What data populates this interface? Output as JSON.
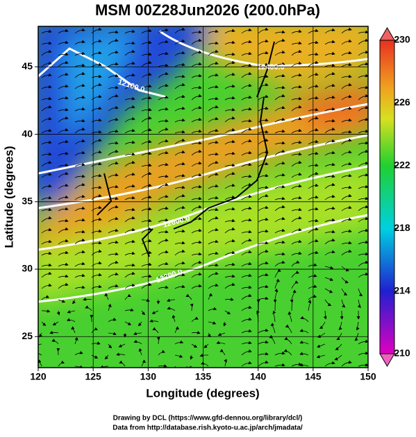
{
  "chart_data": {
    "type": "map",
    "title": "MSM 00Z28Jun2026 (200.0hPa)",
    "x_label": "Longitude (degrees)",
    "y_label": "Latitude  (degrees)",
    "xlim": [
      120,
      150
    ],
    "ylim": [
      22.7,
      48
    ],
    "xticks": [
      120,
      125,
      130,
      135,
      140,
      145,
      150
    ],
    "yticks": [
      25,
      30,
      35,
      40,
      45
    ],
    "grid": true,
    "colorbar": {
      "lim": [
        210,
        230
      ],
      "ticks": [
        210,
        214,
        218,
        222,
        226,
        230
      ]
    },
    "contour_labels": [
      "12400.0",
      "12100.0",
      "12000.0",
      "12300.0"
    ],
    "footer": [
      "Drawing by DCL (https://www.gfd-dennou.org/library/dcl/)",
      "Data from http://database.rish.kyoto-u.ac.jp/arch/jmadata/"
    ]
  }
}
